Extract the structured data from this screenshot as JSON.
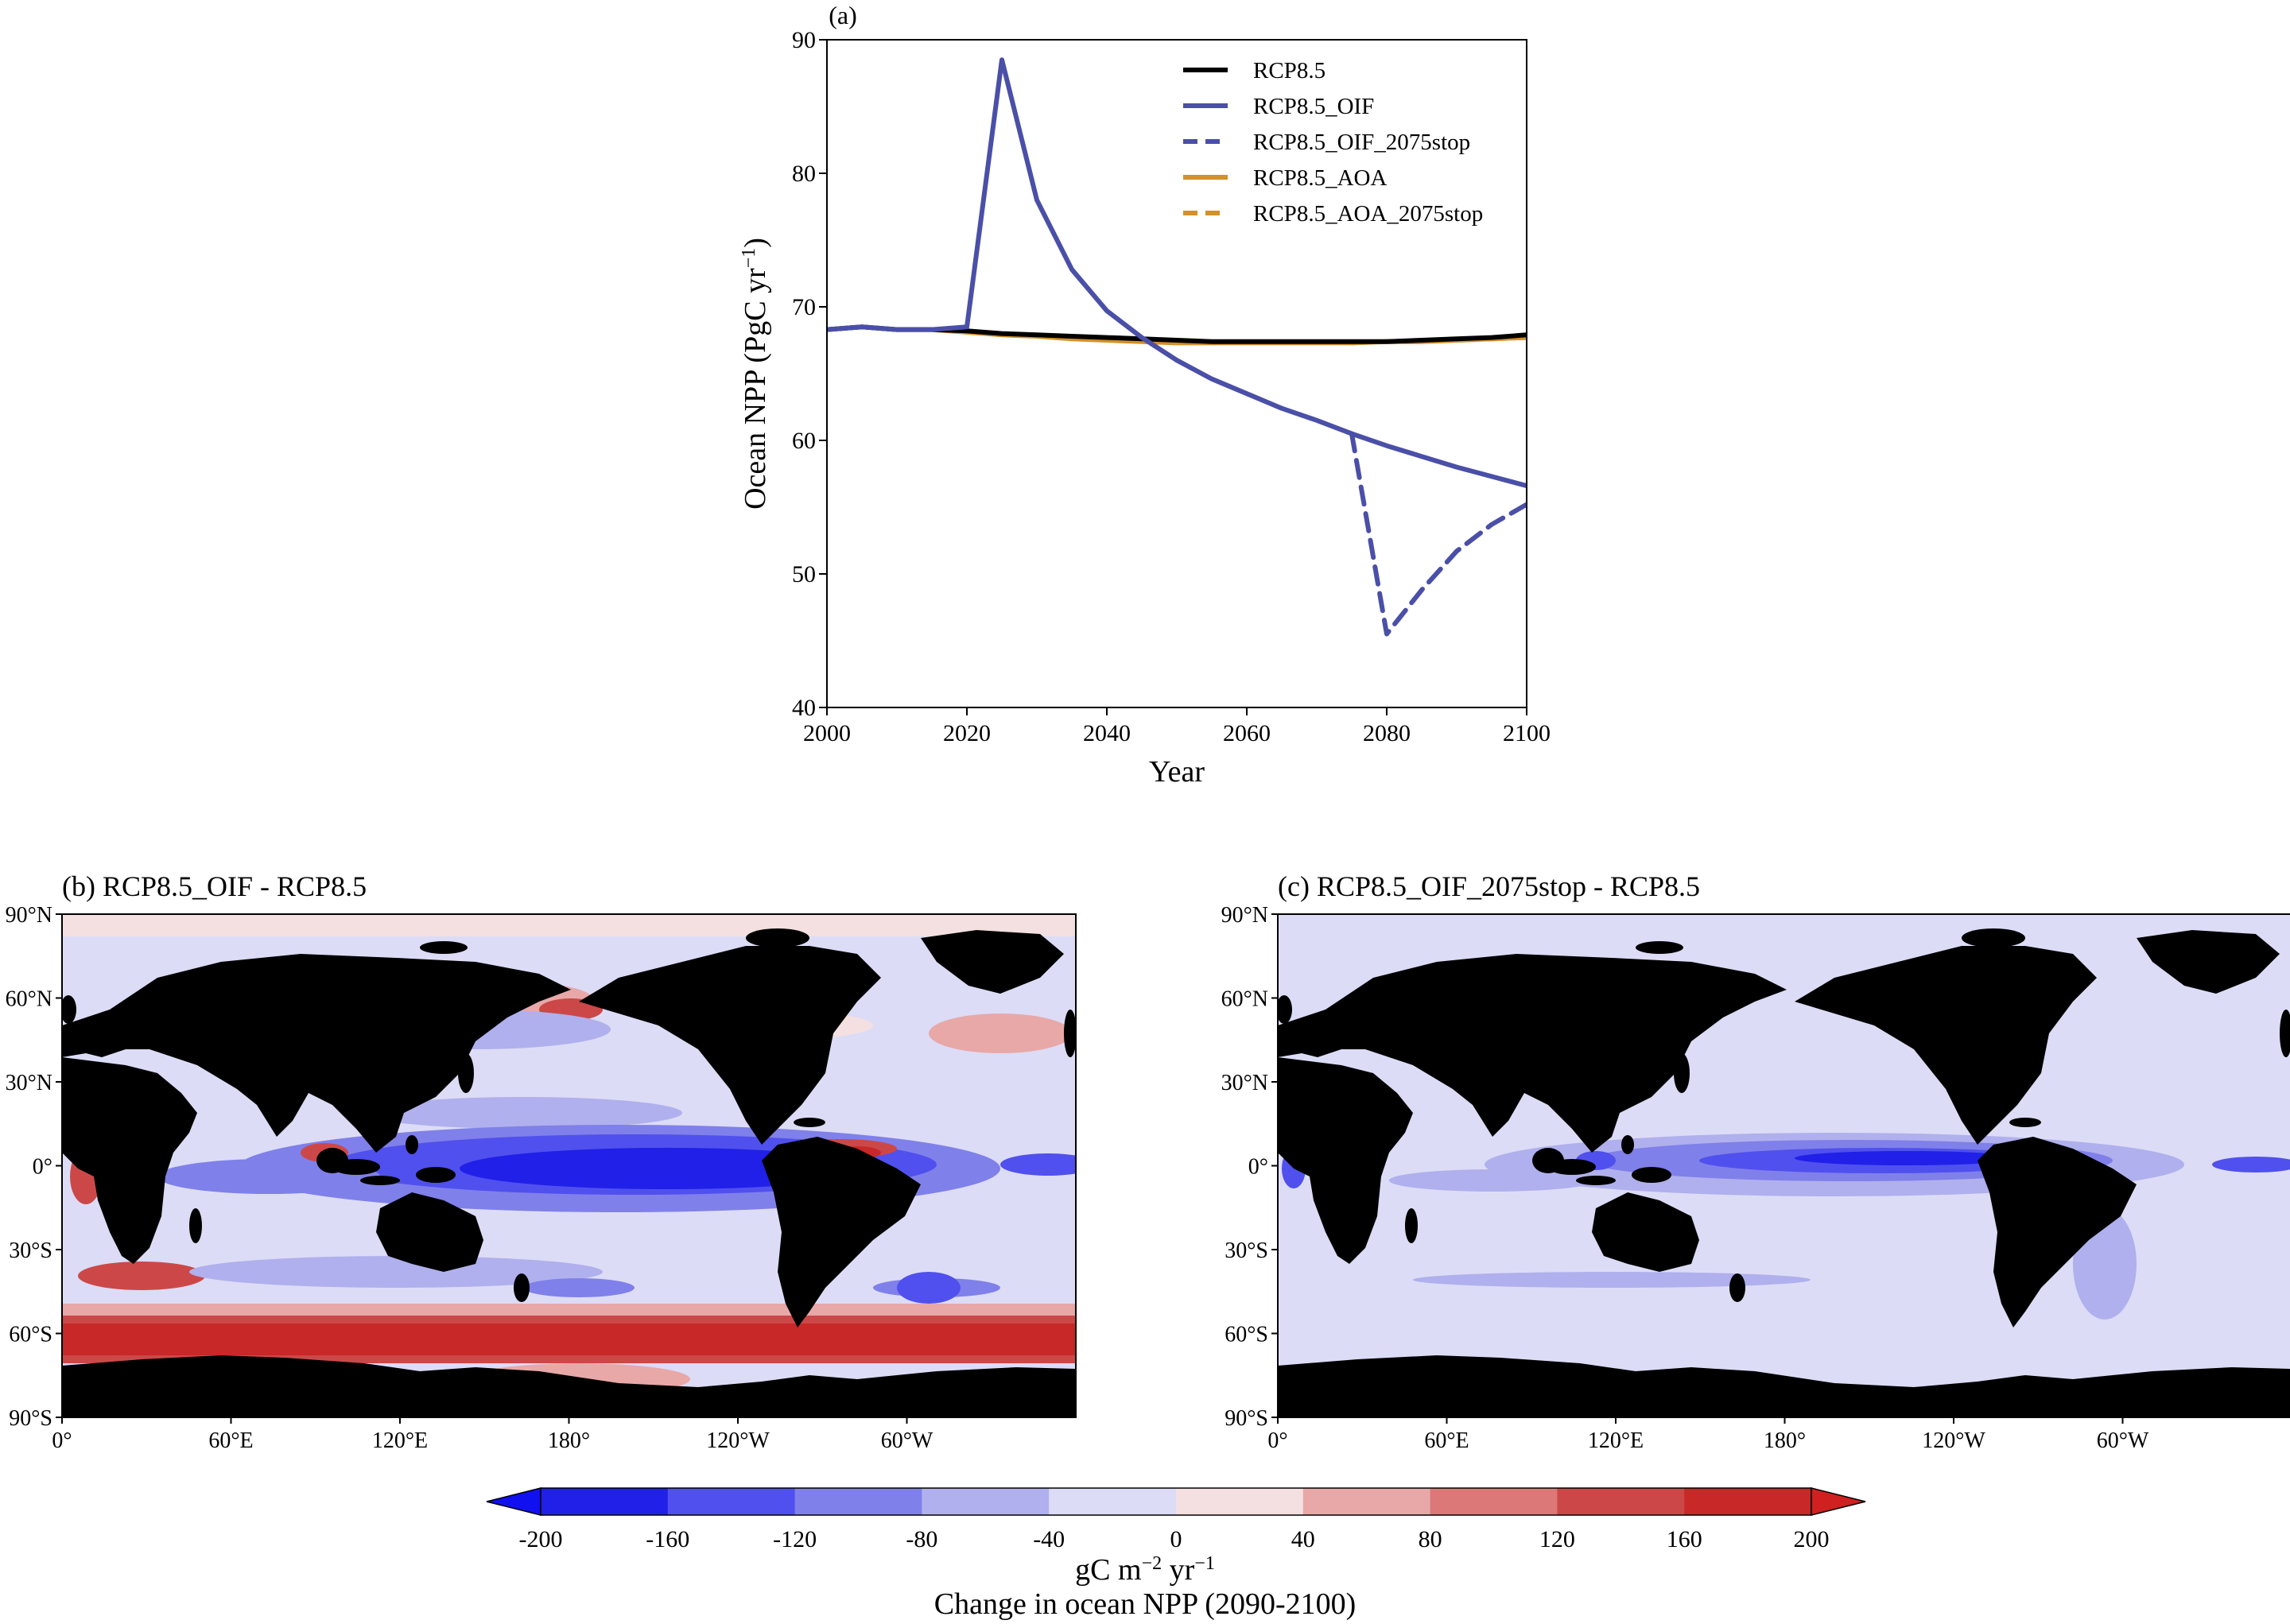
{
  "panel_a": {
    "label": "(a)",
    "chart_data": {
      "type": "line",
      "xlabel": "Year",
      "ylabel_main": "Ocean NPP (PgC yr",
      "ylabel_sup": "−1",
      "ylabel_close": ")",
      "xlim": [
        2000,
        2100
      ],
      "ylim": [
        40,
        90
      ],
      "x_ticks": [
        "2000",
        "2020",
        "2040",
        "2060",
        "2080",
        "2100"
      ],
      "y_ticks": [
        "40",
        "50",
        "60",
        "70",
        "80",
        "90"
      ],
      "legend_position": "top-right",
      "series": [
        {
          "name": "RCP8.5",
          "color": "#000000",
          "dash": "solid",
          "x": [
            2000,
            2005,
            2010,
            2015,
            2020,
            2025,
            2030,
            2035,
            2040,
            2045,
            2050,
            2055,
            2060,
            2065,
            2070,
            2075,
            2080,
            2085,
            2090,
            2095,
            2100
          ],
          "y": [
            68.3,
            68.5,
            68.3,
            68.3,
            68.2,
            68.0,
            67.9,
            67.8,
            67.7,
            67.6,
            67.5,
            67.4,
            67.4,
            67.4,
            67.4,
            67.4,
            67.4,
            67.5,
            67.6,
            67.7,
            67.9
          ]
        },
        {
          "name": "RCP8.5_OIF",
          "color": "#4a4fa8",
          "dash": "solid",
          "x": [
            2000,
            2005,
            2010,
            2015,
            2020,
            2025,
            2030,
            2035,
            2040,
            2045,
            2050,
            2055,
            2060,
            2065,
            2070,
            2075,
            2080,
            2085,
            2090,
            2095,
            2100
          ],
          "y": [
            68.3,
            68.5,
            68.3,
            68.3,
            68.5,
            88.5,
            78.0,
            72.8,
            69.7,
            67.7,
            66.0,
            64.6,
            63.5,
            62.4,
            61.5,
            60.5,
            59.6,
            58.8,
            58.0,
            57.3,
            56.6
          ]
        },
        {
          "name": "RCP8.5_OIF_2075stop",
          "color": "#4a4fa8",
          "dash": "dashed",
          "x": [
            2075,
            2080,
            2085,
            2090,
            2095,
            2100
          ],
          "y": [
            60.5,
            45.5,
            48.8,
            51.7,
            53.7,
            55.2
          ]
        },
        {
          "name": "RCP8.5_AOA",
          "color": "#d4902a",
          "dash": "solid",
          "x": [
            2015,
            2020,
            2025,
            2030,
            2035,
            2040,
            2045,
            2050,
            2055,
            2060,
            2065,
            2070,
            2075,
            2080,
            2085,
            2090,
            2095,
            2100
          ],
          "y": [
            68.3,
            68.1,
            67.9,
            67.8,
            67.6,
            67.5,
            67.4,
            67.3,
            67.3,
            67.3,
            67.3,
            67.3,
            67.3,
            67.4,
            67.4,
            67.5,
            67.6,
            67.7
          ]
        },
        {
          "name": "RCP8.5_AOA_2075stop",
          "color": "#d4902a",
          "dash": "dashed",
          "x": [
            2075,
            2080,
            2085,
            2090,
            2095,
            2100
          ],
          "y": [
            67.3,
            67.4,
            67.4,
            67.5,
            67.6,
            67.7
          ]
        }
      ]
    }
  },
  "map_b": {
    "title": "(b) RCP8.5_OIF - RCP8.5",
    "chart_data": {
      "type": "heatmap",
      "x_ticks": [
        "0°",
        "60°E",
        "120°E",
        "180°",
        "120°W",
        "60°W"
      ],
      "y_ticks": [
        "90°N",
        "60°N",
        "30°N",
        "0°",
        "30°S",
        "60°S",
        "90°S"
      ]
    }
  },
  "map_c": {
    "title": "(c) RCP8.5_OIF_2075stop - RCP8.5",
    "chart_data": {
      "type": "heatmap",
      "x_ticks": [
        "0°",
        "60°E",
        "120°E",
        "180°",
        "120°W",
        "60°W"
      ],
      "y_ticks": [
        "90°N",
        "60°N",
        "30°N",
        "0°",
        "30°S",
        "60°S",
        "90°S"
      ]
    }
  },
  "colorbar": {
    "ticks": [
      "-200",
      "-160",
      "-120",
      "-80",
      "-40",
      "0",
      "40",
      "80",
      "120",
      "160",
      "200"
    ],
    "colors": [
      "#2020e8",
      "#5050ee",
      "#8080ea",
      "#b0b0ee",
      "#dcdcf6",
      "#f4e0e0",
      "#e8a8a8",
      "#dc7878",
      "#cc4848",
      "#c82828"
    ],
    "under_color": "#1010f0",
    "over_color": "#d02020",
    "unit_main": "gC m",
    "unit_sup1": "−2",
    "unit_mid": " yr",
    "unit_sup2": "−1",
    "label": "Change in ocean NPP (2090-2100)"
  }
}
